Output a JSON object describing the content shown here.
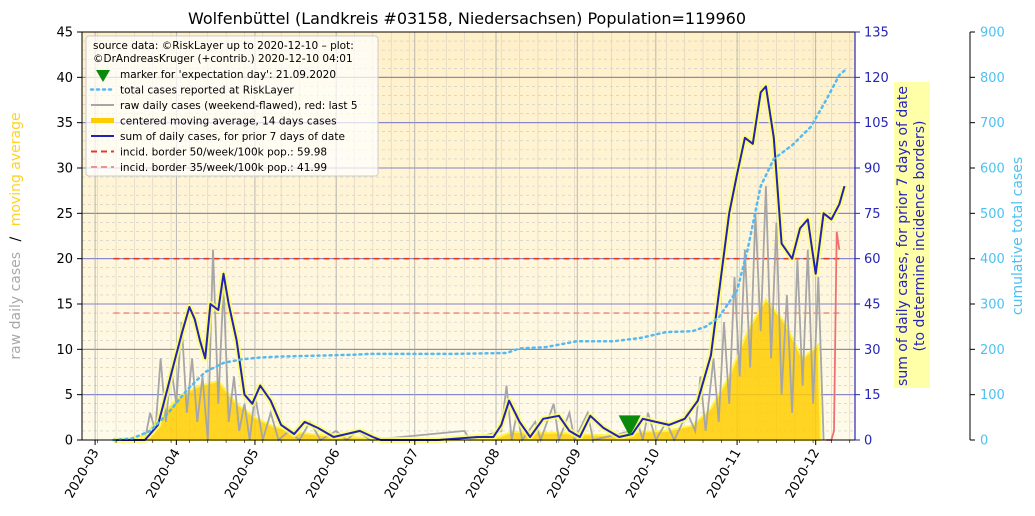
{
  "chart_data": {
    "type": "line",
    "title": "Wolfenbüttel (Landkreis #03158, Niedersachsen) Population=119960",
    "x_tick_labels": [
      "2020-03",
      "2020-04",
      "2020-05",
      "2020-06",
      "2020-07",
      "2020-08",
      "2020-09",
      "2020-10",
      "2020-11",
      "2020-12"
    ],
    "xlim": [
      "2020-02-25",
      "2020-12-16"
    ],
    "left_axis": {
      "ylabel_part1": "raw daily cases",
      "ylabel_sep": "/",
      "ylabel_part2": "moving average",
      "ylim": [
        0,
        45
      ],
      "ticks": [
        0,
        5,
        10,
        15,
        20,
        25,
        30,
        35,
        40,
        45
      ]
    },
    "right_axis_1": {
      "ylabel_line1": "sum of daily cases, for prior 7 days of date",
      "ylabel_line2": "(to determine incidence borders)",
      "ylim": [
        0,
        135
      ],
      "ticks": [
        0,
        15,
        30,
        45,
        60,
        75,
        90,
        105,
        120,
        135
      ]
    },
    "right_axis_2": {
      "ylabel": "cumulative total cases",
      "ylim": [
        0,
        900
      ],
      "ticks": [
        0,
        100,
        200,
        300,
        400,
        500,
        600,
        700,
        800,
        900
      ]
    },
    "legend": {
      "position": "top-left",
      "header_line1": "source data: ©RiskLayer up to 2020-12-10 – plot:",
      "header_line2": "©DrAndreasKruger (+contrib.) 2020-12-10 04:01",
      "entries": [
        {
          "label": "marker for 'expectation day': 21.09.2020",
          "style": "marker"
        },
        {
          "label": "total cases reported at RiskLayer",
          "style": "dotted"
        },
        {
          "label": "raw daily cases (weekend-flawed), red: last 5",
          "style": "gray"
        },
        {
          "label": "centered moving average, 14 days cases",
          "style": "gold"
        },
        {
          "label": "sum of daily cases, for prior 7 days of date",
          "style": "blue"
        },
        {
          "label": "incid. border 50/week/100k pop.: 59.98",
          "style": "red-dash"
        },
        {
          "label": "incid. border 35/week/100k pop.: 41.99",
          "style": "pink-dash"
        }
      ]
    },
    "expectation_day": "2020-09-21",
    "incidence_border_50": 59.98,
    "incidence_border_35": 41.99,
    "series": [
      {
        "name": "total cases reported at RiskLayer",
        "axis": "right_axis_2",
        "points": [
          [
            "2020-03-08",
            0
          ],
          [
            "2020-03-15",
            3
          ],
          [
            "2020-03-22",
            20
          ],
          [
            "2020-03-29",
            60
          ],
          [
            "2020-04-05",
            110
          ],
          [
            "2020-04-12",
            150
          ],
          [
            "2020-04-19",
            170
          ],
          [
            "2020-04-26",
            178
          ],
          [
            "2020-05-03",
            182
          ],
          [
            "2020-05-10",
            184
          ],
          [
            "2020-05-24",
            186
          ],
          [
            "2020-06-07",
            188
          ],
          [
            "2020-06-14",
            190
          ],
          [
            "2020-07-15",
            190
          ],
          [
            "2020-08-05",
            192
          ],
          [
            "2020-08-10",
            202
          ],
          [
            "2020-08-20",
            205
          ],
          [
            "2020-09-01",
            218
          ],
          [
            "2020-09-15",
            218
          ],
          [
            "2020-09-25",
            225
          ],
          [
            "2020-10-05",
            238
          ],
          [
            "2020-10-15",
            240
          ],
          [
            "2020-10-20",
            250
          ],
          [
            "2020-10-25",
            270
          ],
          [
            "2020-11-01",
            330
          ],
          [
            "2020-11-05",
            420
          ],
          [
            "2020-11-10",
            560
          ],
          [
            "2020-11-15",
            620
          ],
          [
            "2020-11-22",
            650
          ],
          [
            "2020-11-29",
            690
          ],
          [
            "2020-12-05",
            750
          ],
          [
            "2020-12-10",
            805
          ],
          [
            "2020-12-13",
            820
          ]
        ]
      },
      {
        "name": "sum of daily cases, for prior 7 days of date",
        "axis": "right_axis_1",
        "points": [
          [
            "2020-03-08",
            0
          ],
          [
            "2020-03-20",
            0
          ],
          [
            "2020-03-25",
            5
          ],
          [
            "2020-03-28",
            15
          ],
          [
            "2020-03-31",
            25
          ],
          [
            "2020-04-03",
            35
          ],
          [
            "2020-04-06",
            44
          ],
          [
            "2020-04-08",
            40
          ],
          [
            "2020-04-10",
            33
          ],
          [
            "2020-04-12",
            27
          ],
          [
            "2020-04-14",
            45
          ],
          [
            "2020-04-17",
            43
          ],
          [
            "2020-04-19",
            55
          ],
          [
            "2020-04-21",
            45
          ],
          [
            "2020-04-24",
            33
          ],
          [
            "2020-04-27",
            15
          ],
          [
            "2020-04-30",
            12
          ],
          [
            "2020-05-03",
            18
          ],
          [
            "2020-05-07",
            13
          ],
          [
            "2020-05-11",
            5
          ],
          [
            "2020-05-16",
            2
          ],
          [
            "2020-05-20",
            6
          ],
          [
            "2020-05-25",
            4
          ],
          [
            "2020-05-31",
            1
          ],
          [
            "2020-06-05",
            2
          ],
          [
            "2020-06-10",
            3
          ],
          [
            "2020-06-15",
            1
          ],
          [
            "2020-06-18",
            0
          ],
          [
            "2020-07-10",
            0
          ],
          [
            "2020-07-25",
            1
          ],
          [
            "2020-07-31",
            1
          ],
          [
            "2020-08-03",
            5
          ],
          [
            "2020-08-06",
            13
          ],
          [
            "2020-08-10",
            6
          ],
          [
            "2020-08-14",
            1
          ],
          [
            "2020-08-19",
            7
          ],
          [
            "2020-08-25",
            8
          ],
          [
            "2020-08-29",
            3
          ],
          [
            "2020-09-02",
            1
          ],
          [
            "2020-09-06",
            8
          ],
          [
            "2020-09-11",
            4
          ],
          [
            "2020-09-17",
            1
          ],
          [
            "2020-09-22",
            2
          ],
          [
            "2020-09-26",
            7
          ],
          [
            "2020-10-01",
            6
          ],
          [
            "2020-10-06",
            5
          ],
          [
            "2020-10-12",
            7
          ],
          [
            "2020-10-17",
            13
          ],
          [
            "2020-10-22",
            28
          ],
          [
            "2020-10-26",
            55
          ],
          [
            "2020-10-29",
            75
          ],
          [
            "2020-11-01",
            88
          ],
          [
            "2020-11-04",
            100
          ],
          [
            "2020-11-07",
            98
          ],
          [
            "2020-11-10",
            115
          ],
          [
            "2020-11-12",
            117
          ],
          [
            "2020-11-15",
            100
          ],
          [
            "2020-11-18",
            65
          ],
          [
            "2020-11-22",
            60
          ],
          [
            "2020-11-25",
            70
          ],
          [
            "2020-11-28",
            73
          ],
          [
            "2020-12-01",
            55
          ],
          [
            "2020-12-04",
            75
          ],
          [
            "2020-12-07",
            73
          ],
          [
            "2020-12-10",
            78
          ],
          [
            "2020-12-12",
            84
          ]
        ]
      },
      {
        "name": "centered moving average, 14 days cases",
        "axis": "left_axis",
        "points": [
          [
            "2020-03-10",
            0
          ],
          [
            "2020-03-20",
            0.5
          ],
          [
            "2020-03-27",
            3
          ],
          [
            "2020-04-03",
            5
          ],
          [
            "2020-04-10",
            6
          ],
          [
            "2020-04-17",
            6.5
          ],
          [
            "2020-04-24",
            4
          ],
          [
            "2020-05-01",
            2.5
          ],
          [
            "2020-05-08",
            1.5
          ],
          [
            "2020-05-18",
            0.8
          ],
          [
            "2020-05-31",
            0.4
          ],
          [
            "2020-06-15",
            0.2
          ],
          [
            "2020-06-25",
            0.05
          ],
          [
            "2020-07-31",
            0.1
          ],
          [
            "2020-08-07",
            0.9
          ],
          [
            "2020-08-15",
            0.8
          ],
          [
            "2020-08-25",
            0.8
          ],
          [
            "2020-09-05",
            0.6
          ],
          [
            "2020-09-15",
            0.5
          ],
          [
            "2020-09-25",
            0.9
          ],
          [
            "2020-10-05",
            1
          ],
          [
            "2020-10-15",
            1.6
          ],
          [
            "2020-10-22",
            3.5
          ],
          [
            "2020-10-29",
            7
          ],
          [
            "2020-11-05",
            12
          ],
          [
            "2020-11-12",
            15.5
          ],
          [
            "2020-11-19",
            13
          ],
          [
            "2020-11-26",
            9
          ],
          [
            "2020-12-02",
            10.5
          ],
          [
            "2020-12-03",
            0
          ]
        ]
      },
      {
        "name": "raw daily cases (weekend-flawed), red: last 5",
        "axis": "left_axis",
        "points": [
          [
            "2020-03-20",
            0
          ],
          [
            "2020-03-22",
            3
          ],
          [
            "2020-03-24",
            1
          ],
          [
            "2020-03-26",
            9
          ],
          [
            "2020-03-28",
            2
          ],
          [
            "2020-03-30",
            8
          ],
          [
            "2020-04-01",
            4
          ],
          [
            "2020-04-03",
            13
          ],
          [
            "2020-04-05",
            3
          ],
          [
            "2020-04-07",
            9
          ],
          [
            "2020-04-09",
            2
          ],
          [
            "2020-04-11",
            7
          ],
          [
            "2020-04-13",
            0
          ],
          [
            "2020-04-15",
            21
          ],
          [
            "2020-04-17",
            4
          ],
          [
            "2020-04-19",
            17
          ],
          [
            "2020-04-21",
            2
          ],
          [
            "2020-04-23",
            7
          ],
          [
            "2020-04-25",
            1
          ],
          [
            "2020-04-27",
            4
          ],
          [
            "2020-04-29",
            0
          ],
          [
            "2020-05-01",
            5
          ],
          [
            "2020-05-04",
            0
          ],
          [
            "2020-05-07",
            3
          ],
          [
            "2020-05-10",
            0
          ],
          [
            "2020-05-14",
            1
          ],
          [
            "2020-05-18",
            0
          ],
          [
            "2020-05-22",
            2
          ],
          [
            "2020-05-26",
            0
          ],
          [
            "2020-06-01",
            1
          ],
          [
            "2020-06-05",
            0
          ],
          [
            "2020-06-09",
            1
          ],
          [
            "2020-06-14",
            0
          ],
          [
            "2020-07-20",
            1
          ],
          [
            "2020-07-22",
            0
          ],
          [
            "2020-08-03",
            1
          ],
          [
            "2020-08-05",
            6
          ],
          [
            "2020-08-07",
            0
          ],
          [
            "2020-08-09",
            3
          ],
          [
            "2020-08-11",
            0
          ],
          [
            "2020-08-16",
            2
          ],
          [
            "2020-08-18",
            0
          ],
          [
            "2020-08-23",
            4
          ],
          [
            "2020-08-25",
            0
          ],
          [
            "2020-08-29",
            3
          ],
          [
            "2020-08-31",
            0
          ],
          [
            "2020-09-05",
            3
          ],
          [
            "2020-09-07",
            0
          ],
          [
            "2020-09-22",
            1
          ],
          [
            "2020-09-24",
            2
          ],
          [
            "2020-09-26",
            0
          ],
          [
            "2020-09-28",
            3
          ],
          [
            "2020-10-01",
            0
          ],
          [
            "2020-10-05",
            2
          ],
          [
            "2020-10-08",
            0
          ],
          [
            "2020-10-13",
            3
          ],
          [
            "2020-10-16",
            1
          ],
          [
            "2020-10-18",
            7
          ],
          [
            "2020-10-20",
            1
          ],
          [
            "2020-10-23",
            9
          ],
          [
            "2020-10-25",
            2
          ],
          [
            "2020-10-27",
            13
          ],
          [
            "2020-10-29",
            4
          ],
          [
            "2020-10-31",
            18
          ],
          [
            "2020-11-02",
            7
          ],
          [
            "2020-11-04",
            21
          ],
          [
            "2020-11-06",
            8
          ],
          [
            "2020-11-08",
            25
          ],
          [
            "2020-11-10",
            12
          ],
          [
            "2020-11-12",
            28
          ],
          [
            "2020-11-14",
            9
          ],
          [
            "2020-11-16",
            24
          ],
          [
            "2020-11-18",
            5
          ],
          [
            "2020-11-20",
            16
          ],
          [
            "2020-11-22",
            3
          ],
          [
            "2020-11-24",
            20
          ],
          [
            "2020-11-26",
            6
          ],
          [
            "2020-11-28",
            21
          ],
          [
            "2020-11-30",
            4
          ],
          [
            "2020-12-02",
            18
          ],
          [
            "2020-12-04",
            0
          ]
        ]
      },
      {
        "name": "raw daily cases, last 5 (red)",
        "axis": "left_axis",
        "points": [
          [
            "2020-12-05",
            0
          ],
          [
            "2020-12-07",
            0
          ],
          [
            "2020-12-08",
            1
          ],
          [
            "2020-12-09",
            23
          ],
          [
            "2020-12-10",
            21
          ]
        ]
      }
    ]
  }
}
